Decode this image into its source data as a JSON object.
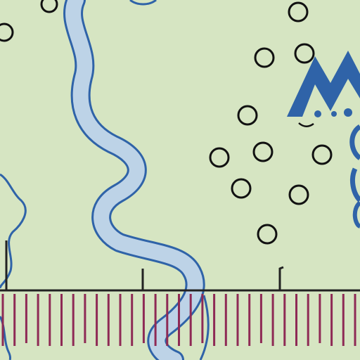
{
  "map": {
    "background_color": "#d6e5c2",
    "river_fill_color": "#bdd3e7",
    "river_outline_color": "#2f63a8",
    "symbol_color": "#2f63a8",
    "circle_stroke_color": "#111111",
    "fence_color": "#8e2a55",
    "fence_rail_color": "#222222",
    "features": {
      "river": "river",
      "stream": "stream",
      "circles": "circle-markers",
      "fence": "fence-line",
      "logo": "mountain-logo"
    }
  }
}
